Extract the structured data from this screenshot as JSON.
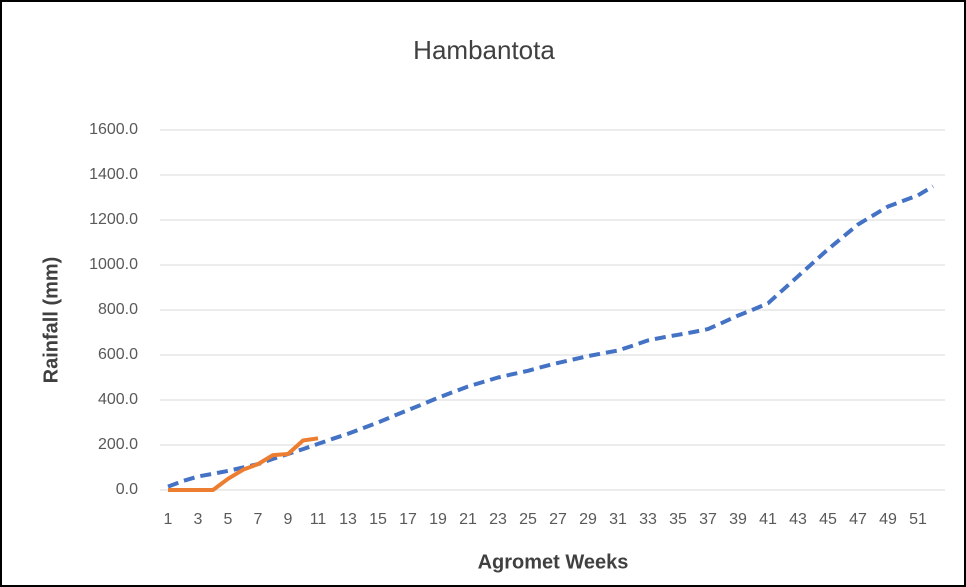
{
  "chart_data": {
    "type": "line",
    "title": "Hambantota",
    "x_label": "Agromet Weeks",
    "y_label": "Rainfall (mm)",
    "categories": [
      1,
      null,
      3,
      null,
      5,
      null,
      7,
      null,
      9,
      null,
      11,
      null,
      13,
      null,
      15,
      null,
      17,
      null,
      19,
      null,
      21,
      null,
      23,
      null,
      25,
      null,
      27,
      null,
      29,
      null,
      31,
      null,
      33,
      null,
      35,
      null,
      37,
      null,
      39,
      null,
      41,
      null,
      43,
      null,
      45,
      null,
      47,
      null,
      49,
      null,
      51,
      null
    ],
    "series": [
      {
        "color": "#4472c4",
        "dashed": true,
        "values": [
          15,
          40,
          60,
          72,
          85,
          100,
          115,
          138,
          160,
          182,
          205,
          228,
          250,
          275,
          300,
          328,
          355,
          382,
          410,
          435,
          460,
          480,
          500,
          515,
          530,
          548,
          565,
          580,
          595,
          608,
          620,
          642,
          665,
          678,
          690,
          702,
          715,
          745,
          775,
          802,
          830,
          890,
          950,
          1010,
          1070,
          1125,
          1180,
          1220,
          1260,
          1285,
          1310,
          1350
        ]
      },
      {
        "color": "#ed7d31",
        "dashed": false,
        "values": [
          0,
          0,
          0,
          0,
          50,
          90,
          115,
          155,
          160,
          220,
          230,
          null,
          null,
          null,
          null,
          null,
          null,
          null,
          null,
          null,
          null,
          null,
          null,
          null,
          null,
          null,
          null,
          null,
          null,
          null,
          null,
          null,
          null,
          null,
          null,
          null,
          null,
          null,
          null,
          null,
          null,
          null,
          null,
          null,
          null,
          null,
          null,
          null,
          null,
          null,
          null,
          null
        ]
      }
    ],
    "ylim": [
      0,
      1600
    ],
    "yticks": [
      {
        "value": 0,
        "label": "0.0"
      },
      {
        "value": 200,
        "label": "200.0"
      },
      {
        "value": 400,
        "label": "400.0"
      },
      {
        "value": 600,
        "label": "600.0"
      },
      {
        "value": 800,
        "label": "800.0"
      },
      {
        "value": 1000,
        "label": "1000.0"
      },
      {
        "value": 1200,
        "label": "1200.0"
      },
      {
        "value": 1400,
        "label": "1400.0"
      },
      {
        "value": 1600,
        "label": "1600.0"
      }
    ],
    "grid": true
  }
}
